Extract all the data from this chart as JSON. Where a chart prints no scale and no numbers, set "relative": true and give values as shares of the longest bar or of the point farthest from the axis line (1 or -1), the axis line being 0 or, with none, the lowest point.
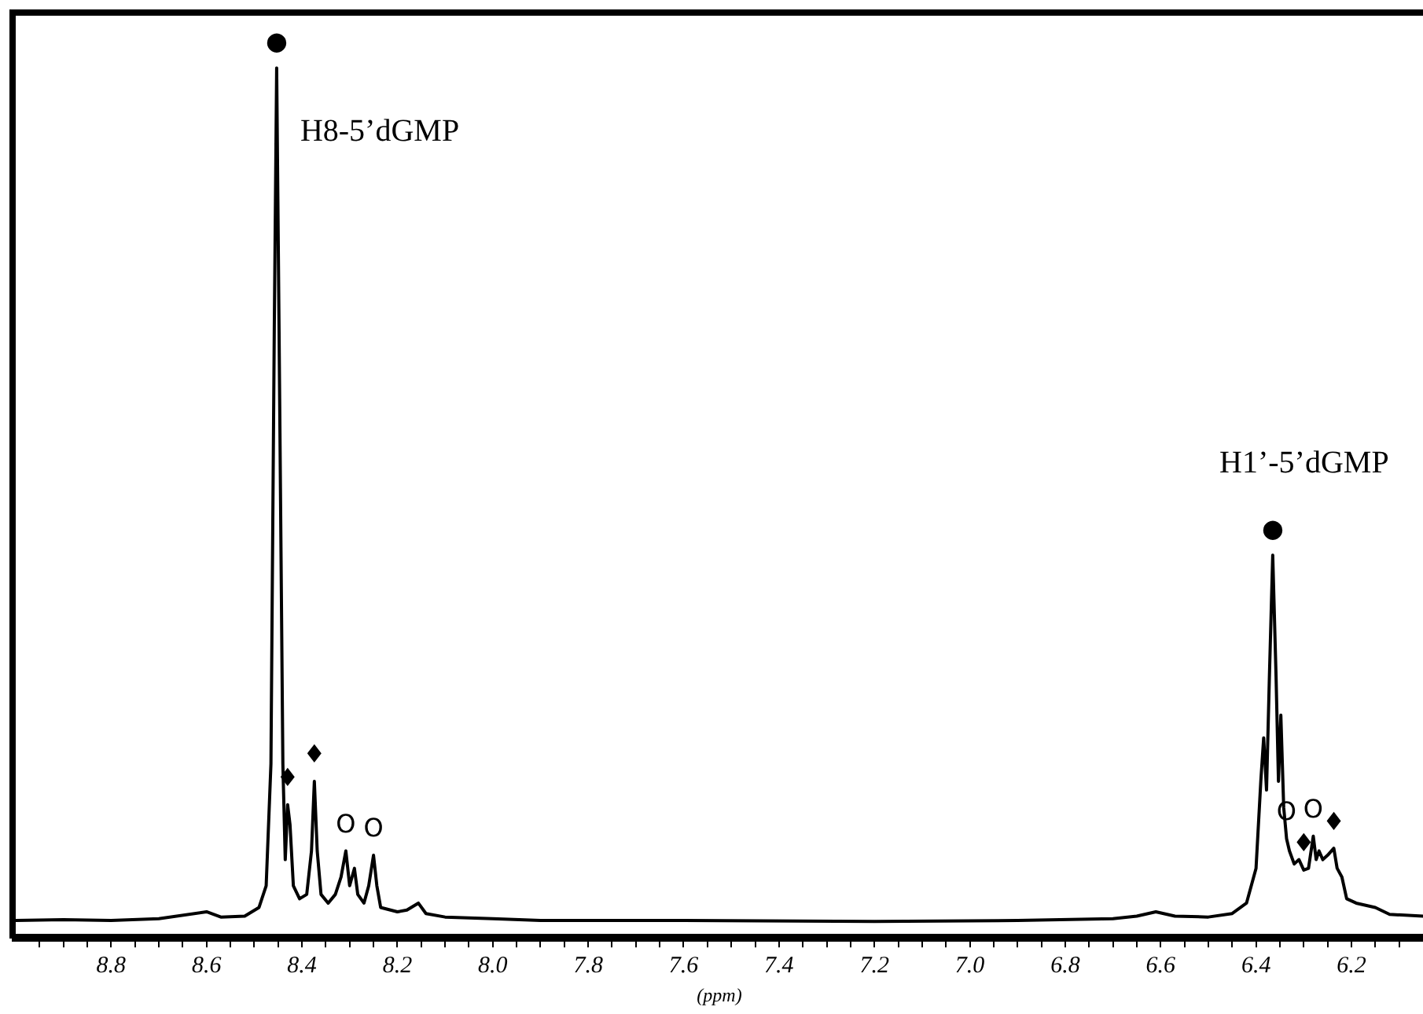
{
  "chart_data": {
    "type": "line",
    "relative": true,
    "xlabel": "(ppm)",
    "xlim": [
      9.0,
      6.05
    ],
    "xticks": [
      {
        "value": 8.95,
        "label": null
      },
      {
        "value": 8.9,
        "label": null
      },
      {
        "value": 8.85,
        "label": null
      },
      8.8,
      {
        "value": 8.75,
        "label": null
      },
      {
        "value": 8.7,
        "label": null
      },
      {
        "value": 8.65,
        "label": null
      },
      8.6,
      {
        "value": 8.55,
        "label": null
      },
      {
        "value": 8.5,
        "label": null
      },
      {
        "value": 8.45,
        "label": null
      },
      8.4,
      {
        "value": 8.35,
        "label": null
      },
      {
        "value": 8.3,
        "label": null
      },
      {
        "value": 8.25,
        "label": null
      },
      8.2,
      {
        "value": 8.15,
        "label": null
      },
      {
        "value": 8.1,
        "label": null
      },
      {
        "value": 8.05,
        "label": null
      },
      {
        "value": 8.0,
        "label": "8.0"
      },
      {
        "value": 7.95,
        "label": null
      },
      {
        "value": 7.9,
        "label": null
      },
      {
        "value": 7.85,
        "label": null
      },
      7.8,
      {
        "value": 7.75,
        "label": null
      },
      {
        "value": 7.7,
        "label": null
      },
      {
        "value": 7.65,
        "label": null
      },
      7.6,
      {
        "value": 7.55,
        "label": null
      },
      {
        "value": 7.5,
        "label": null
      },
      {
        "value": 7.45,
        "label": null
      },
      7.4,
      {
        "value": 7.35,
        "label": null
      },
      {
        "value": 7.3,
        "label": null
      },
      {
        "value": 7.25,
        "label": null
      },
      7.2,
      {
        "value": 7.15,
        "label": null
      },
      {
        "value": 7.1,
        "label": null
      },
      {
        "value": 7.05,
        "label": null
      },
      {
        "value": 7.0,
        "label": "7.0"
      },
      {
        "value": 6.95,
        "label": null
      },
      {
        "value": 6.9,
        "label": null
      },
      {
        "value": 6.85,
        "label": null
      },
      6.8,
      {
        "value": 6.75,
        "label": null
      },
      {
        "value": 6.7,
        "label": null
      },
      {
        "value": 6.65,
        "label": null
      },
      6.6,
      {
        "value": 6.55,
        "label": null
      },
      {
        "value": 6.5,
        "label": null
      },
      {
        "value": 6.45,
        "label": null
      },
      6.4,
      {
        "value": 6.35,
        "label": null
      },
      {
        "value": 6.3,
        "label": null
      },
      {
        "value": 6.25,
        "label": null
      },
      6.2,
      {
        "value": 6.15,
        "label": null
      },
      {
        "value": 6.1,
        "label": null
      }
    ],
    "series": [
      {
        "color": "#000000",
        "x": [
          9.0,
          8.9,
          8.8,
          8.7,
          8.6,
          8.57,
          8.52,
          8.49,
          8.475,
          8.465,
          8.458,
          8.453,
          8.448,
          8.44,
          8.435,
          8.43,
          8.425,
          8.418,
          8.405,
          8.39,
          8.38,
          8.374,
          8.368,
          8.36,
          8.345,
          8.33,
          8.318,
          8.308,
          8.3,
          8.29,
          8.283,
          8.27,
          8.26,
          8.25,
          8.243,
          8.235,
          8.2,
          8.18,
          8.156,
          8.14,
          8.1,
          8.0,
          7.9,
          7.6,
          7.2,
          6.9,
          6.7,
          6.65,
          6.61,
          6.57,
          6.5,
          6.45,
          6.42,
          6.4,
          6.39,
          6.384,
          6.378,
          6.372,
          6.365,
          6.358,
          6.353,
          6.348,
          6.342,
          6.336,
          6.33,
          6.32,
          6.31,
          6.3,
          6.29,
          6.28,
          6.274,
          6.268,
          6.26,
          6.25,
          6.237,
          6.23,
          6.22,
          6.21,
          6.19,
          6.15,
          6.12,
          6.05
        ],
        "values": [
          0.02,
          0.021,
          0.02,
          0.022,
          0.03,
          0.024,
          0.025,
          0.035,
          0.06,
          0.2,
          0.7,
          1.0,
          0.7,
          0.2,
          0.09,
          0.153,
          0.13,
          0.06,
          0.045,
          0.05,
          0.1,
          0.18,
          0.1,
          0.05,
          0.04,
          0.05,
          0.07,
          0.1,
          0.06,
          0.08,
          0.05,
          0.04,
          0.06,
          0.095,
          0.06,
          0.035,
          0.03,
          0.032,
          0.04,
          0.028,
          0.024,
          0.022,
          0.02,
          0.02,
          0.019,
          0.02,
          0.022,
          0.025,
          0.03,
          0.025,
          0.024,
          0.028,
          0.04,
          0.08,
          0.18,
          0.23,
          0.17,
          0.3,
          0.44,
          0.3,
          0.18,
          0.256,
          0.15,
          0.114,
          0.1,
          0.085,
          0.09,
          0.078,
          0.08,
          0.117,
          0.09,
          0.1,
          0.09,
          0.095,
          0.103,
          0.08,
          0.07,
          0.045,
          0.04,
          0.035,
          0.027,
          0.025
        ]
      }
    ],
    "annotations": [
      {
        "text": "H8-5’dGMP",
        "x": 8.453,
        "y": 1.0
      },
      {
        "text": "H1’-5’dGMP",
        "x": 6.365,
        "y": 0.44
      },
      {
        "text": "●",
        "x": 8.453,
        "y": 1.0
      },
      {
        "text": "♦",
        "x": 8.43,
        "y": 0.153
      },
      {
        "text": "♦",
        "x": 8.374,
        "y": 0.18
      },
      {
        "text": "O",
        "x": 8.308,
        "y": 0.1
      },
      {
        "text": "O",
        "x": 8.25,
        "y": 0.095
      },
      {
        "text": "●",
        "x": 6.365,
        "y": 0.44
      },
      {
        "text": "♦",
        "x": 6.3,
        "y": 0.078
      },
      {
        "text": "♦",
        "x": 6.237,
        "y": 0.103
      },
      {
        "text": "O",
        "x": 6.336,
        "y": 0.114
      },
      {
        "text": "O",
        "x": 6.28,
        "y": 0.117
      }
    ],
    "marker": "none",
    "legend": false,
    "grid": false
  }
}
